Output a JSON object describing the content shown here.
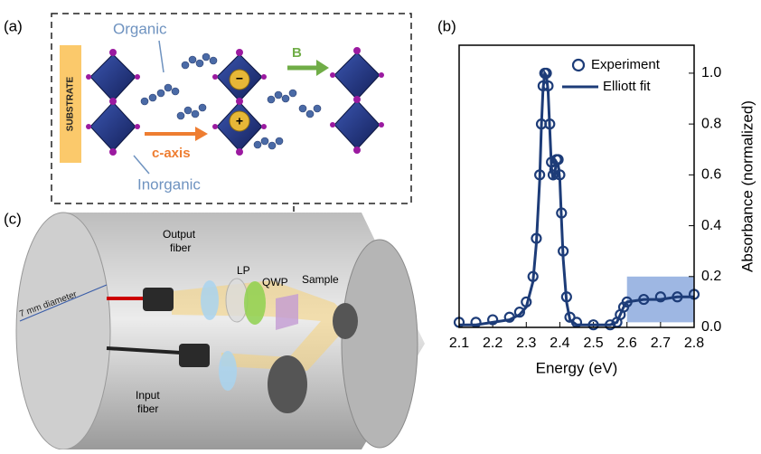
{
  "panels": {
    "a": {
      "label": "(a)",
      "organic": "Organic",
      "inorganic": "Inorganic",
      "substrate": "SUBSTRATE",
      "c_axis": "c-axis",
      "field": "B"
    },
    "c": {
      "label": "(c)",
      "output_fiber": [
        "Output",
        "fiber"
      ],
      "input_fiber": [
        "Input",
        "fiber"
      ],
      "lp": "LP",
      "qwp": "QWP",
      "sample": "Sample",
      "diameter": "7 mm diameter"
    }
  },
  "chart_data": {
    "type": "line",
    "label": "(b)",
    "xlabel": "Energy (eV)",
    "ylabel": "Absorbance (normalized)",
    "x": [
      2.1,
      2.15,
      2.2,
      2.25,
      2.28,
      2.3,
      2.32,
      2.33,
      2.34,
      2.345,
      2.35,
      2.355,
      2.36,
      2.365,
      2.37,
      2.375,
      2.38,
      2.385,
      2.39,
      2.395,
      2.4,
      2.405,
      2.41,
      2.42,
      2.43,
      2.45,
      2.5,
      2.55,
      2.57,
      2.58,
      2.59,
      2.6,
      2.65,
      2.7,
      2.75,
      2.8
    ],
    "series": [
      {
        "name": "Experiment",
        "color": "#1d3c78",
        "style": "markers",
        "values": [
          0.02,
          0.02,
          0.03,
          0.04,
          0.06,
          0.1,
          0.2,
          0.35,
          0.6,
          0.8,
          0.95,
          1.0,
          1.0,
          0.95,
          0.8,
          0.65,
          0.6,
          0.62,
          0.66,
          0.66,
          0.6,
          0.45,
          0.3,
          0.12,
          0.04,
          0.02,
          0.01,
          0.01,
          0.02,
          0.05,
          0.08,
          0.1,
          0.11,
          0.12,
          0.12,
          0.13
        ]
      },
      {
        "name": "Elliott fit",
        "color": "#1d3c78",
        "style": "line",
        "values": [
          0.01,
          0.01,
          0.02,
          0.03,
          0.05,
          0.08,
          0.18,
          0.33,
          0.58,
          0.79,
          0.94,
          1.0,
          0.99,
          0.93,
          0.78,
          0.63,
          0.58,
          0.61,
          0.65,
          0.64,
          0.58,
          0.42,
          0.27,
          0.1,
          0.03,
          0.01,
          0.01,
          0.01,
          0.02,
          0.05,
          0.08,
          0.1,
          0.11,
          0.11,
          0.12,
          0.12
        ]
      }
    ],
    "highlight": {
      "x": [
        2.6,
        2.8
      ],
      "y": [
        0.02,
        0.2
      ],
      "color": "#7e9fd9"
    },
    "xlim": [
      2.1,
      2.8
    ],
    "ylim": [
      0,
      1.11
    ],
    "xticks": [
      2.1,
      2.2,
      2.3,
      2.4,
      2.5,
      2.6,
      2.7,
      2.8
    ],
    "yticks": [
      {
        "value": 0,
        "label": "0.0"
      },
      0.2,
      0.4,
      0.6,
      0.8,
      {
        "value": 1,
        "label": "1.0"
      }
    ],
    "legend": "upper right"
  }
}
